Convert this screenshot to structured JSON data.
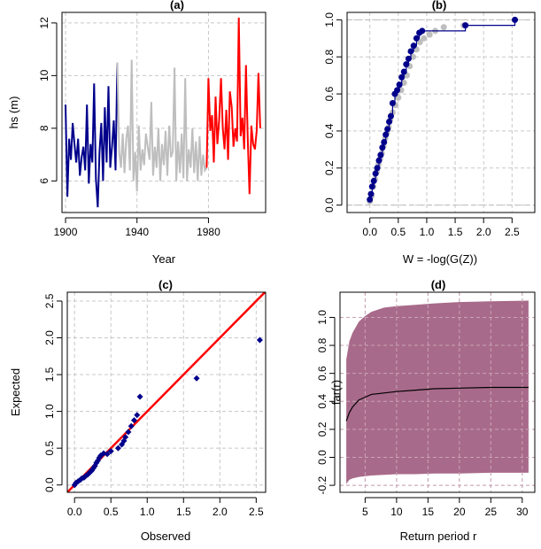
{
  "chart_data": [
    {
      "id": "a",
      "type": "line",
      "title": "(a)",
      "xlabel": "Year",
      "ylabel": "hs (m)",
      "xlim": [
        1898,
        2012
      ],
      "ylim": [
        4.8,
        12.4
      ],
      "xticks": [
        1900,
        1940,
        1980
      ],
      "yticks": [
        6,
        8,
        10,
        12
      ],
      "grid": true,
      "series": [
        {
          "color": "#00008B",
          "x": [
            1900,
            1901,
            1902,
            1903,
            1904,
            1905,
            1906,
            1907,
            1908,
            1909,
            1910,
            1911,
            1912,
            1913,
            1914,
            1915,
            1916,
            1917,
            1918,
            1919,
            1920,
            1921,
            1922,
            1923,
            1924,
            1925,
            1926,
            1927,
            1928,
            1929
          ],
          "y": [
            8.9,
            5.4,
            7.6,
            6.8,
            8.2,
            7.4,
            6.7,
            7.6,
            6.2,
            6.9,
            7.3,
            6.4,
            8.9,
            5.9,
            7.4,
            6.7,
            9.7,
            6.1,
            5.0,
            7.1,
            8.2,
            6.0,
            8.8,
            6.7,
            9.6,
            6.5,
            7.3,
            8.3,
            6.4,
            10.5
          ]
        },
        {
          "color": "#BEBEBE",
          "x": [
            1929,
            1930,
            1931,
            1932,
            1933,
            1934,
            1935,
            1936,
            1937,
            1938,
            1939,
            1940,
            1941,
            1942,
            1943,
            1944,
            1945,
            1946,
            1947,
            1948,
            1949,
            1950,
            1951,
            1952,
            1953,
            1954,
            1955,
            1956,
            1957,
            1958,
            1959,
            1960,
            1961,
            1962,
            1963,
            1964,
            1965,
            1966,
            1967,
            1968,
            1969,
            1970,
            1971,
            1972,
            1973,
            1974,
            1975,
            1976,
            1977,
            1978,
            1979
          ],
          "y": [
            10.5,
            7.1,
            6.5,
            7.8,
            6.3,
            7.6,
            8.1,
            6.4,
            10.6,
            6.0,
            7.1,
            5.6,
            8.1,
            6.4,
            7.2,
            6.6,
            7.8,
            7.3,
            6.8,
            9.0,
            6.2,
            7.3,
            6.5,
            8.0,
            6.0,
            7.4,
            6.6,
            7.9,
            6.2,
            8.1,
            6.9,
            7.1,
            10.3,
            6.0,
            7.5,
            6.3,
            7.8,
            6.1,
            9.9,
            6.0,
            7.2,
            6.5,
            8.0,
            6.3,
            7.5,
            6.0,
            7.7,
            6.2,
            7.0,
            6.4,
            6.5
          ]
        },
        {
          "color": "#FF0000",
          "x": [
            1979,
            1980,
            1981,
            1982,
            1983,
            1984,
            1985,
            1986,
            1987,
            1988,
            1989,
            1990,
            1991,
            1992,
            1993,
            1994,
            1995,
            1996,
            1997,
            1998,
            1999,
            2000,
            2001,
            2002,
            2003,
            2004,
            2005,
            2006,
            2007,
            2008,
            2009
          ],
          "y": [
            6.5,
            9.9,
            7.9,
            8.5,
            6.7,
            9.2,
            7.4,
            8.3,
            9.9,
            8.0,
            7.2,
            8.7,
            6.8,
            9.4,
            8.8,
            7.3,
            8.0,
            7.5,
            12.2,
            7.7,
            8.4,
            7.2,
            10.4,
            7.6,
            5.5,
            8.1,
            7.4,
            7.2,
            7.9,
            10.1,
            8.0
          ]
        }
      ]
    },
    {
      "id": "b",
      "type": "scatter",
      "title": "(b)",
      "xlabel": "W = -log(G(Z))",
      "ylabel": "",
      "xlim": [
        -0.4,
        2.9
      ],
      "ylim": [
        -0.04,
        1.04
      ],
      "xticks": [
        0.0,
        0.5,
        1.0,
        1.5,
        2.0,
        2.5
      ],
      "yticks": [
        0.0,
        0.2,
        0.4,
        0.6,
        0.8,
        1.0
      ],
      "grid": true,
      "hlines": [
        0,
        1
      ],
      "series": [
        {
          "color": "#BEBEBE",
          "style": "points",
          "x": [
            0.0,
            0.03,
            0.06,
            0.09,
            0.12,
            0.15,
            0.18,
            0.21,
            0.24,
            0.27,
            0.3,
            0.33,
            0.36,
            0.4,
            0.45,
            0.5,
            0.55,
            0.6,
            0.65,
            0.7,
            0.76,
            0.82,
            0.88,
            0.95,
            1.05,
            1.15,
            1.3,
            1.65,
            2.55
          ],
          "y": [
            0.02,
            0.05,
            0.1,
            0.14,
            0.18,
            0.22,
            0.25,
            0.28,
            0.32,
            0.36,
            0.39,
            0.42,
            0.46,
            0.5,
            0.54,
            0.58,
            0.62,
            0.66,
            0.7,
            0.75,
            0.8,
            0.84,
            0.88,
            0.9,
            0.92,
            0.94,
            0.96,
            0.97,
            1.0
          ]
        },
        {
          "color": "#00008B",
          "style": "step",
          "x": [
            0.0,
            0.02,
            0.04,
            0.07,
            0.1,
            0.13,
            0.16,
            0.19,
            0.22,
            0.25,
            0.28,
            0.31,
            0.34,
            0.37,
            0.4,
            0.44,
            0.48,
            0.52,
            0.56,
            0.6,
            0.64,
            0.68,
            0.72,
            0.77,
            0.82,
            0.87,
            0.92,
            1.68,
            2.55
          ],
          "y": [
            0.03,
            0.06,
            0.1,
            0.13,
            0.17,
            0.2,
            0.24,
            0.27,
            0.31,
            0.34,
            0.38,
            0.41,
            0.45,
            0.48,
            0.55,
            0.6,
            0.62,
            0.65,
            0.69,
            0.72,
            0.76,
            0.79,
            0.83,
            0.86,
            0.9,
            0.93,
            0.94,
            0.97,
            1.0
          ]
        }
      ]
    },
    {
      "id": "c",
      "type": "scatter",
      "title": "(c)",
      "xlabel": "Observed",
      "ylabel": "Expected",
      "xlim": [
        -0.1,
        2.63
      ],
      "ylim": [
        -0.1,
        2.62
      ],
      "xticks": [
        0.0,
        0.5,
        1.0,
        1.5,
        2.0,
        2.5
      ],
      "yticks": [
        0.0,
        0.5,
        1.0,
        1.5,
        2.0,
        2.5
      ],
      "grid": true,
      "reference_line": {
        "color": "#FF0000",
        "slope": 1,
        "intercept": 0
      },
      "points": {
        "color": "#00008B",
        "x": [
          0.0,
          0.02,
          0.05,
          0.08,
          0.1,
          0.13,
          0.15,
          0.18,
          0.2,
          0.22,
          0.24,
          0.26,
          0.28,
          0.3,
          0.32,
          0.34,
          0.36,
          0.4,
          0.45,
          0.5,
          0.6,
          0.65,
          0.68,
          0.7,
          0.74,
          0.78,
          0.82,
          0.86,
          0.9,
          1.68,
          2.55
        ],
        "y": [
          0.0,
          0.03,
          0.05,
          0.07,
          0.09,
          0.1,
          0.12,
          0.14,
          0.16,
          0.18,
          0.2,
          0.23,
          0.26,
          0.3,
          0.33,
          0.37,
          0.4,
          0.43,
          0.42,
          0.46,
          0.5,
          0.55,
          0.6,
          0.65,
          0.72,
          0.8,
          0.88,
          0.95,
          1.2,
          1.45,
          1.97
        ]
      }
    },
    {
      "id": "d",
      "type": "area",
      "title": "(d)",
      "xlabel": "Return period r",
      "ylabel": "far(r)",
      "xlim": [
        1,
        32
      ],
      "ylim": [
        -0.25,
        1.18
      ],
      "xticks": [
        5,
        10,
        15,
        20,
        25,
        30
      ],
      "yticks": [
        -0.2,
        0.0,
        0.2,
        0.4,
        0.6,
        0.8,
        1.0
      ],
      "grid": true,
      "band_color": "#A86A8A",
      "r": [
        2,
        2.5,
        3,
        4,
        5,
        6,
        8,
        10,
        13,
        16,
        20,
        25,
        31
      ],
      "far": [
        0.26,
        0.32,
        0.36,
        0.41,
        0.43,
        0.45,
        0.46,
        0.47,
        0.48,
        0.49,
        0.495,
        0.5,
        0.5
      ],
      "upper": [
        0.7,
        0.83,
        0.89,
        0.97,
        1.01,
        1.04,
        1.07,
        1.08,
        1.09,
        1.1,
        1.11,
        1.115,
        1.12
      ],
      "lower": [
        -0.19,
        -0.16,
        -0.15,
        -0.14,
        -0.135,
        -0.13,
        -0.125,
        -0.12,
        -0.12,
        -0.115,
        -0.115,
        -0.11,
        -0.11
      ]
    }
  ]
}
